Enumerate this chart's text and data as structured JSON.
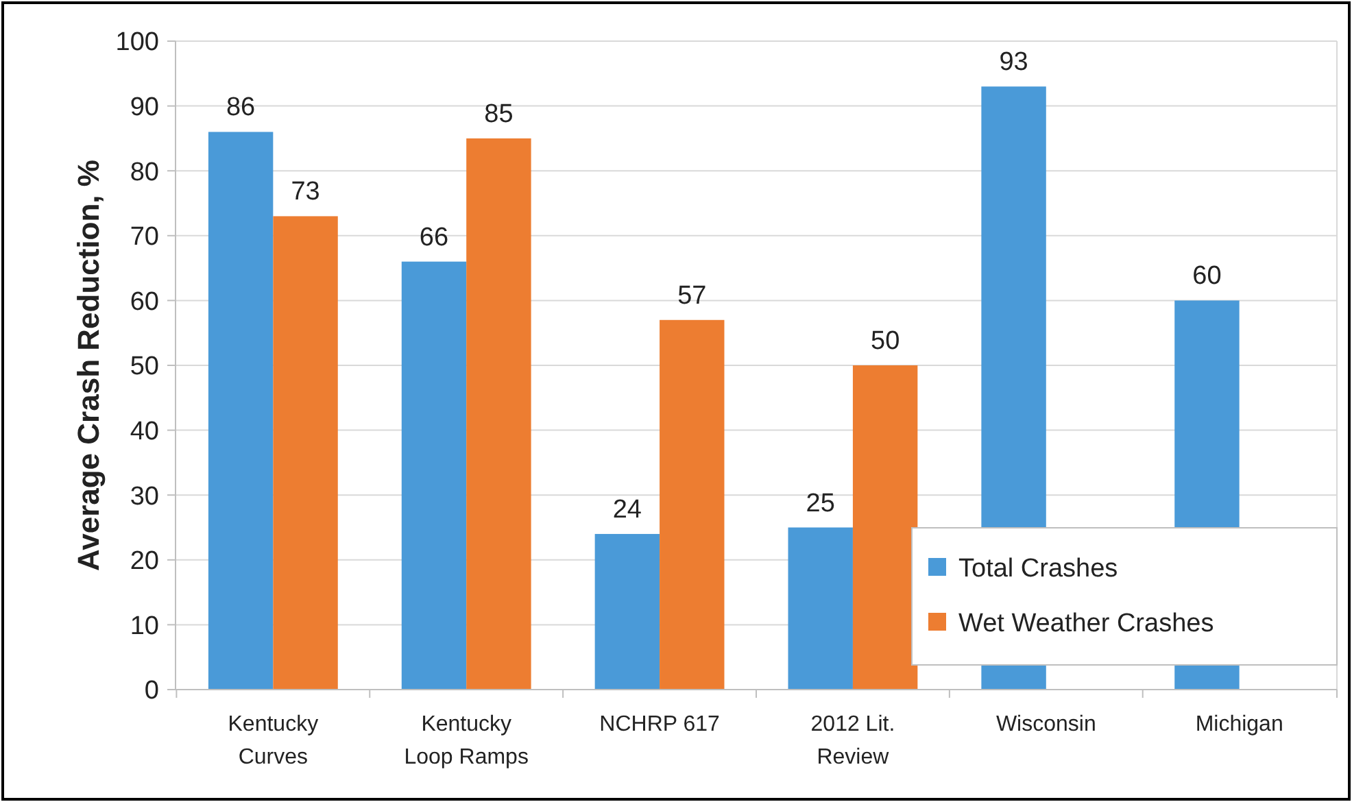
{
  "chart_data": {
    "type": "bar",
    "ylabel": "Average Crash Reduction, %",
    "categories": [
      "Kentucky Curves",
      "Kentucky Loop Ramps",
      "NCHRP 617",
      "2012 Lit. Review",
      "Wisconsin",
      "Michigan"
    ],
    "series": [
      {
        "name": "Total Crashes",
        "color": "#4a9ad8",
        "values": [
          86,
          66,
          24,
          25,
          93,
          60
        ]
      },
      {
        "name": "Wet Weather Crashes",
        "color": "#ed7d31",
        "values": [
          73,
          85,
          57,
          50,
          null,
          null
        ]
      }
    ],
    "ylim": [
      0,
      100
    ],
    "yticks": [
      0,
      10,
      20,
      30,
      40,
      50,
      60,
      70,
      80,
      90,
      100
    ],
    "grid": "y",
    "legend": "bottom right",
    "data_labels": true
  }
}
